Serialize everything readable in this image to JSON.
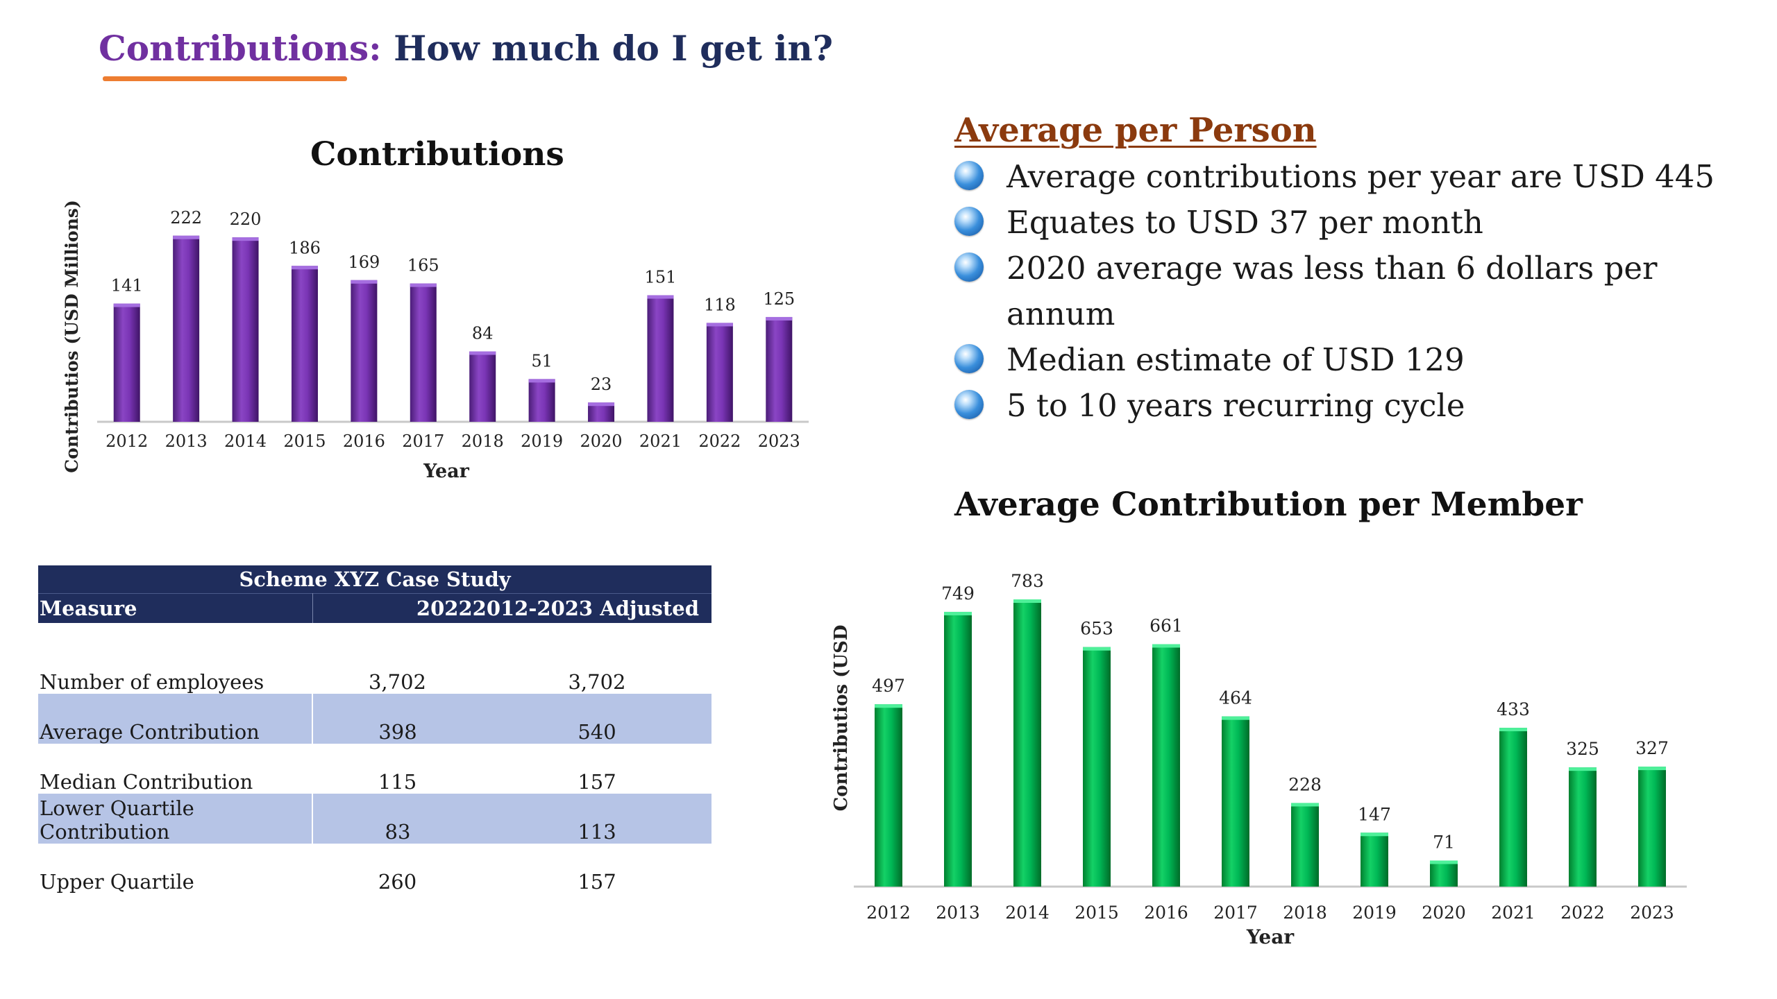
{
  "slide": {
    "title_part1": "Contributions:",
    "title_part2": "How much do I get in?",
    "accent_color": "#ed7d31"
  },
  "chart_data": [
    {
      "type": "bar",
      "title": "Contributions",
      "xlabel": "Year",
      "ylabel": "Contributios (USD Millions)",
      "categories": [
        "2012",
        "2013",
        "2014",
        "2015",
        "2016",
        "2017",
        "2018",
        "2019",
        "2020",
        "2021",
        "2022",
        "2023"
      ],
      "values": [
        141,
        222,
        220,
        186,
        169,
        165,
        84,
        51,
        23,
        151,
        118,
        125
      ],
      "ylim": [
        0,
        240
      ],
      "grid": false,
      "data_labels": true,
      "color": "#7030a0"
    },
    {
      "type": "bar",
      "title": "Average Contribution per Member",
      "xlabel": "Year",
      "ylabel": "Contributios (USD",
      "categories": [
        "2012",
        "2013",
        "2014",
        "2015",
        "2016",
        "2017",
        "2018",
        "2019",
        "2020",
        "2021",
        "2022",
        "2023"
      ],
      "values": [
        497,
        749,
        783,
        653,
        661,
        464,
        228,
        147,
        71,
        433,
        325,
        327
      ],
      "ylim": [
        0,
        800
      ],
      "grid": false,
      "data_labels": true,
      "color": "#00b050"
    }
  ],
  "bullets": {
    "heading": "Average per Person",
    "items": [
      "Average contributions per year are USD 445",
      "Equates to USD 37 per month",
      "2020 average was less than 6 dollars per annum",
      "Median estimate of USD 129",
      "5 to 10 years recurring cycle"
    ]
  },
  "table": {
    "title": "Scheme XYZ Case Study",
    "header": [
      "Measure",
      "2022",
      "2012-2023 Adjusted"
    ],
    "rows": [
      {
        "measure": "Number of employees",
        "v2022": "3,702",
        "adjusted": "3,702",
        "shaded": false
      },
      {
        "measure": "Average Contribution",
        "v2022": "398",
        "adjusted": "540",
        "shaded": true
      },
      {
        "measure": "Median Contribution",
        "v2022": "115",
        "adjusted": "157",
        "shaded": false
      },
      {
        "measure": "Lower Quartile Contribution",
        "v2022": "83",
        "adjusted": "113",
        "shaded": true
      },
      {
        "measure": "Upper Quartile",
        "v2022": "260",
        "adjusted": "157",
        "shaded": false
      }
    ],
    "header_color": "#1f2d5c",
    "shade_color": "#b6c4e6"
  }
}
